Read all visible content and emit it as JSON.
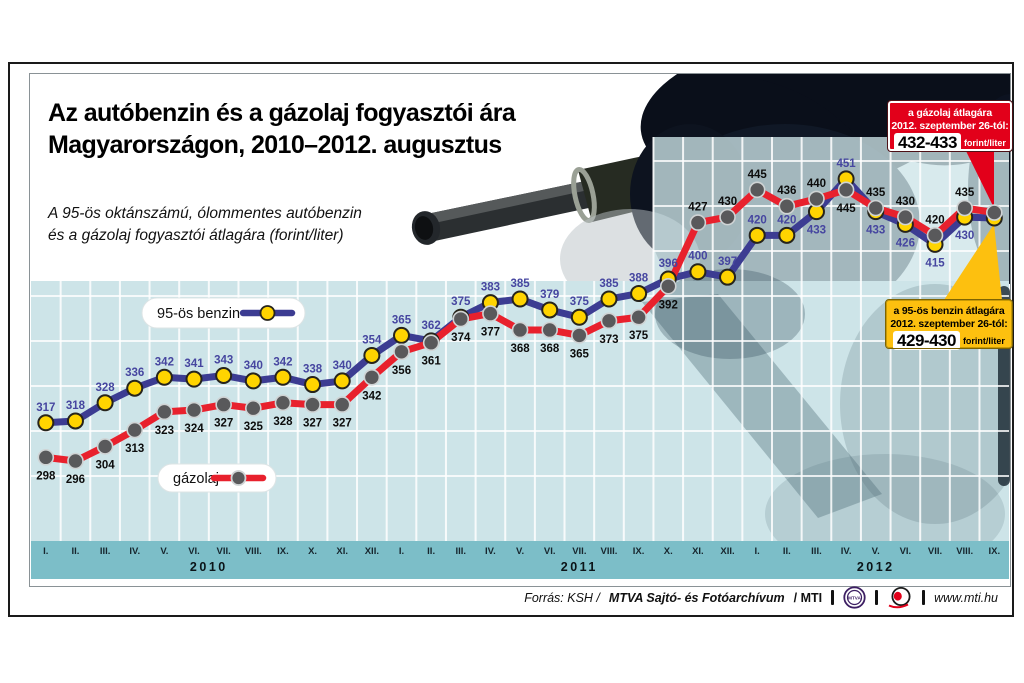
{
  "header": {
    "title_line1": "Az autóbenzin és a gázolaj fogyasztói ára",
    "title_line2": "Magyarországon, 2010–2012. augusztus",
    "subtitle_line1": "A 95-ös oktánszámú, ólommentes autóbenzin",
    "subtitle_line2": "és a gázolaj fogyasztói átlagára (forint/liter)"
  },
  "chart_data": {
    "type": "line",
    "months": [
      "I.",
      "II.",
      "III.",
      "IV.",
      "V.",
      "VI.",
      "VII.",
      "VIII.",
      "IX.",
      "X.",
      "XI.",
      "XII.",
      "I.",
      "II.",
      "III.",
      "IV.",
      "V.",
      "VI.",
      "VII.",
      "VIII.",
      "IX.",
      "X.",
      "XI.",
      "XII.",
      "I.",
      "II.",
      "III.",
      "IV.",
      "V.",
      "VI.",
      "VII.",
      "VIII.",
      "IX."
    ],
    "year_labels": [
      {
        "text": "2010",
        "at": 6
      },
      {
        "text": "2011",
        "at": 18.5
      },
      {
        "text": "2012",
        "at": 28.5
      }
    ],
    "series": [
      {
        "name": "95-ös benzin",
        "line_color": "#3c3c92",
        "marker_color": "#ffd400",
        "marker_stroke": "#26241c",
        "label_color": "#4646a0",
        "values": [
          317,
          318,
          328,
          336,
          342,
          341,
          343,
          340,
          342,
          338,
          340,
          354,
          365,
          362,
          375,
          383,
          385,
          379,
          375,
          385,
          388,
          396,
          400,
          397,
          420,
          420,
          433,
          451,
          433,
          426,
          415,
          430,
          429.5
        ]
      },
      {
        "name": "gázolaj",
        "line_color": "#e8212d",
        "marker_color": "#59595b",
        "marker_stroke": "#cfd3d4",
        "label_color": "#0c0c0c",
        "values": [
          298,
          296,
          304,
          313,
          323,
          324,
          327,
          325,
          328,
          327,
          327,
          342,
          356,
          361,
          374,
          377,
          368,
          368,
          365,
          373,
          375,
          392,
          427,
          430,
          445,
          436,
          440,
          445,
          435,
          430,
          420,
          435,
          432.5
        ]
      }
    ],
    "final_point_labeled": false,
    "ylim": [
      252,
      475
    ],
    "grid": true,
    "legend_position": "inside-left"
  },
  "callouts": {
    "diesel": {
      "line1": "a gázolaj átlagára",
      "line2": "2012. szeptember 26-tól:",
      "value": "432-433",
      "unit": "forint/liter",
      "bg": "#e2001a"
    },
    "petrol": {
      "line1": "a 95-ös benzin átlagára",
      "line2": "2012. szeptember 26-tól:",
      "value": "429-430",
      "unit": "forint/liter",
      "bg": "#fdc00f"
    }
  },
  "colors": {
    "plot_bg": "#cde4e8",
    "axis_band": "#7cbec8",
    "grid": "#ffffff"
  },
  "footer": {
    "source_prefix": "Forrás: KSH /",
    "source_archive": "MTVA Sajtó- és Fotóarchívum",
    "source_mti": "/ MTI",
    "mtva_text": "MTVA",
    "website": "www.mti.hu"
  }
}
